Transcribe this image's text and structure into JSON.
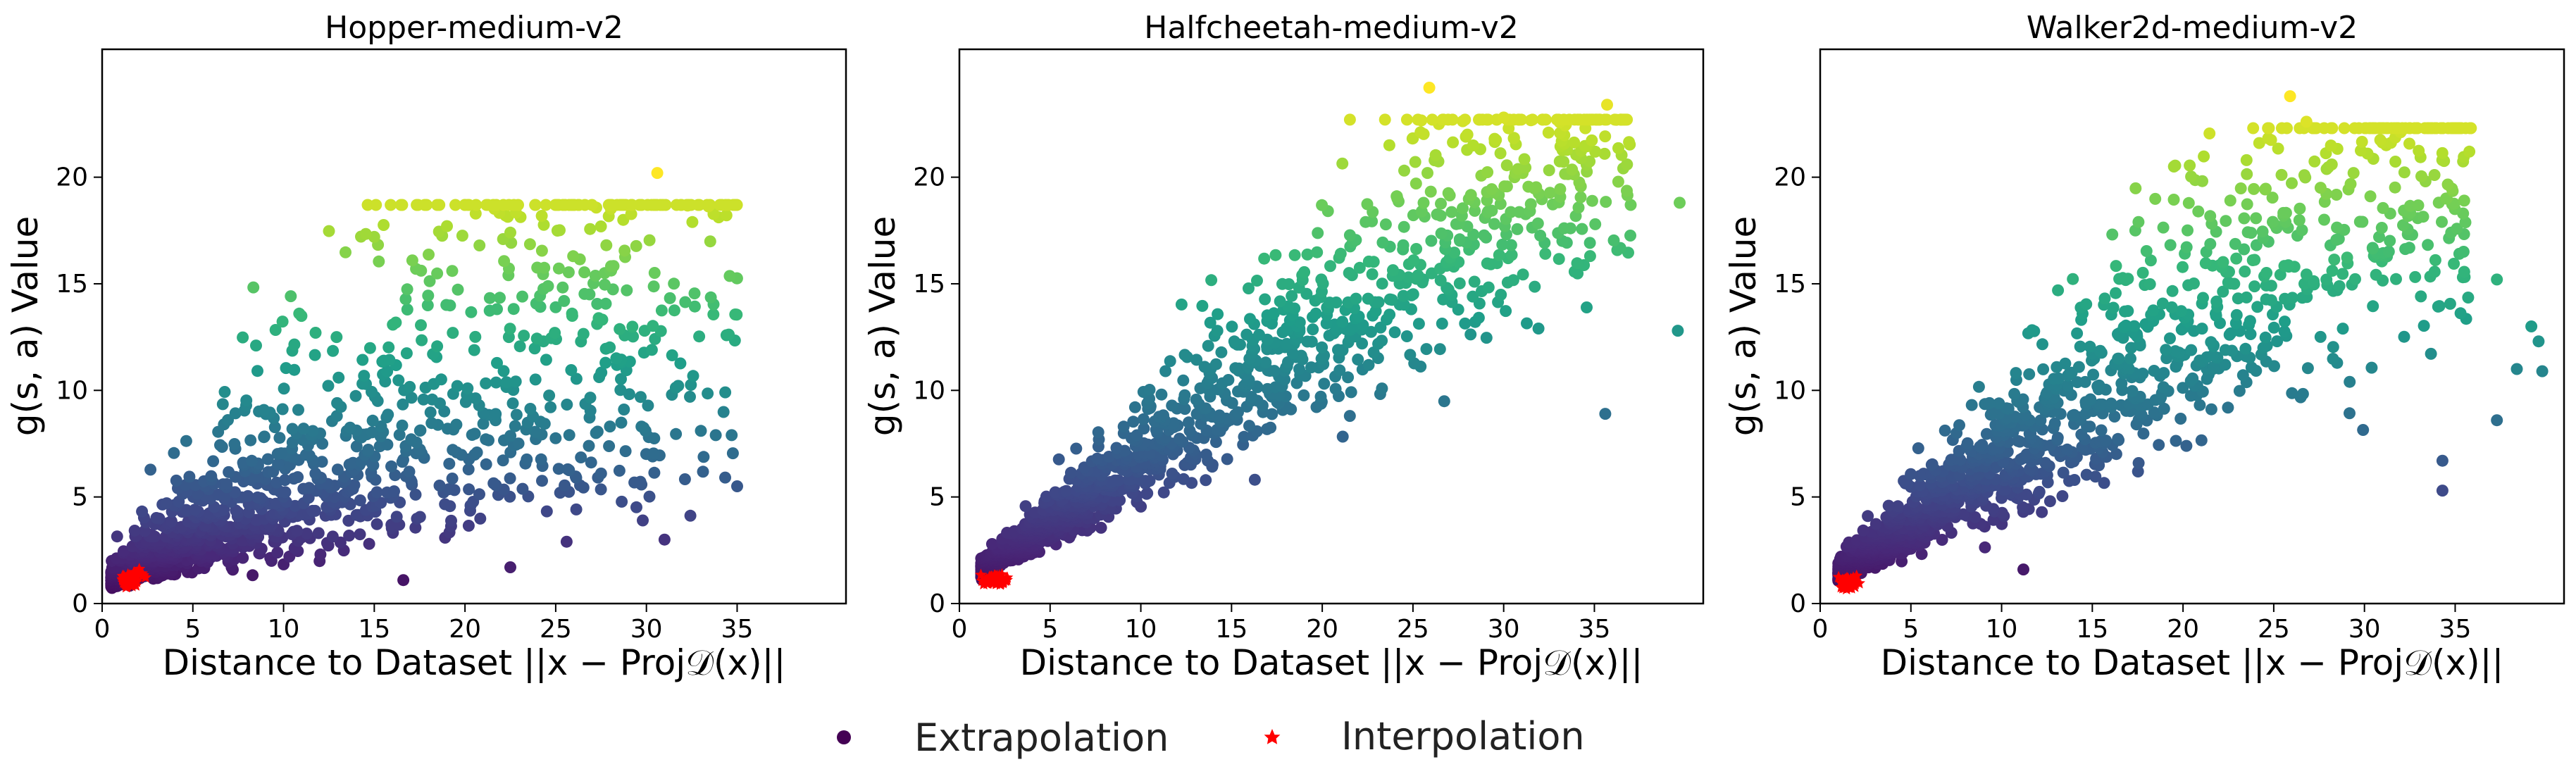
{
  "chart_data": [
    {
      "type": "scatter",
      "title": "Hopper-medium-v2",
      "xlabel": "Distance to Dataset ||x − Proj𝒟(x)||",
      "ylabel": "g(s, a) Value",
      "xlim": [
        0,
        41
      ],
      "ylim": [
        0,
        26
      ],
      "xticks": [
        "0",
        "5",
        "10",
        "15",
        "20",
        "25",
        "30",
        "35"
      ],
      "yticks": [
        "0",
        "5",
        "10",
        "15",
        "20"
      ],
      "color_range": [
        0,
        20.2
      ],
      "series": [
        {
          "name": "Extrapolation",
          "marker": "circle",
          "colormap": "viridis",
          "trend": {
            "x_range": [
              0.5,
              35
            ],
            "mean_slope": 0.42,
            "spread": 0.55
          },
          "values": [
            [
              30.6,
              20.2
            ],
            [
              15.0,
              17.2
            ],
            [
              22.5,
              17.4
            ],
            [
              17.1,
              16.1
            ],
            [
              17.3,
              15.7
            ],
            [
              20.8,
              16.8
            ],
            [
              27.7,
              15.5
            ],
            [
              25.0,
              13.9
            ],
            [
              25.9,
              13.6
            ],
            [
              29.9,
              12.8
            ],
            [
              32.4,
              9.7
            ],
            [
              33.0,
              8.1
            ],
            [
              34.7,
              7.9
            ],
            [
              35.0,
              5.5
            ],
            [
              27.5,
              6.1
            ],
            [
              29.8,
              3.9
            ],
            [
              31.0,
              3.0
            ],
            [
              25.6,
              2.9
            ],
            [
              22.5,
              1.7
            ],
            [
              16.6,
              1.1
            ],
            [
              30.3,
              11.9
            ]
          ]
        },
        {
          "name": "Interpolation",
          "marker": "star",
          "color": "#ff0000",
          "center": [
            1.6,
            1.1
          ],
          "spread": [
            0.45,
            0.3
          ]
        }
      ]
    },
    {
      "type": "scatter",
      "title": "Halfcheetah-medium-v2",
      "xlabel": "Distance to Dataset ||x − Proj𝒟(x)||",
      "ylabel": "g(s, a) Value",
      "xlim": [
        0,
        41
      ],
      "ylim": [
        0,
        26
      ],
      "xticks": [
        "0",
        "5",
        "10",
        "15",
        "20",
        "25",
        "30",
        "35"
      ],
      "yticks": [
        "0",
        "5",
        "10",
        "15",
        "20"
      ],
      "color_range": [
        0,
        24.2
      ],
      "series": [
        {
          "name": "Extrapolation",
          "marker": "circle",
          "colormap": "viridis",
          "trend": {
            "x_range": [
              1.2,
              37
            ],
            "mean_slope": 0.6,
            "spread": 0.2
          },
          "values": [
            [
              25.9,
              24.2
            ],
            [
              35.7,
              23.4
            ],
            [
              30.0,
              22.8
            ],
            [
              28.0,
              22.0
            ],
            [
              33.2,
              21.7
            ],
            [
              23.7,
              21.5
            ],
            [
              36.8,
              20.6
            ],
            [
              37.0,
              18.7
            ],
            [
              39.7,
              18.8
            ],
            [
              39.6,
              12.8
            ],
            [
              35.6,
              8.9
            ],
            [
              25.8,
              20.2
            ],
            [
              30.6,
              20.0
            ],
            [
              29.5,
              21.8
            ]
          ]
        },
        {
          "name": "Interpolation",
          "marker": "star",
          "color": "#ff0000",
          "center": [
            2.0,
            1.1
          ],
          "spread": [
            0.5,
            0.22
          ]
        }
      ]
    },
    {
      "type": "scatter",
      "title": "Walker2d-medium-v2",
      "xlabel": "Distance to Dataset ||x − Proj𝒟(x)||",
      "ylabel": "g(s, a) Value",
      "xlim": [
        0,
        41
      ],
      "ylim": [
        0,
        26
      ],
      "xticks": [
        "0",
        "5",
        "10",
        "15",
        "20",
        "25",
        "30",
        "35"
      ],
      "yticks": [
        "0",
        "5",
        "10",
        "15",
        "20"
      ],
      "color_range": [
        0,
        23.8
      ],
      "series": [
        {
          "name": "Extrapolation",
          "marker": "circle",
          "colormap": "viridis",
          "trend": {
            "x_range": [
              1.0,
              36
            ],
            "mean_slope": 0.58,
            "spread": 0.28
          },
          "values": [
            [
              25.9,
              23.8
            ],
            [
              26.8,
              22.6
            ],
            [
              31.2,
              21.5
            ],
            [
              28.2,
              20.6
            ],
            [
              29.4,
              20.2
            ],
            [
              34.5,
              19.0
            ],
            [
              35.5,
              18.9
            ],
            [
              37.3,
              15.2
            ],
            [
              39.2,
              13.0
            ],
            [
              39.6,
              12.3
            ],
            [
              39.8,
              10.9
            ],
            [
              38.4,
              11.0
            ],
            [
              37.3,
              8.6
            ],
            [
              34.3,
              6.7
            ],
            [
              34.3,
              5.3
            ],
            [
              11.2,
              1.6
            ],
            [
              19.5,
              20.5
            ],
            [
              23.5,
              20.8
            ]
          ]
        },
        {
          "name": "Interpolation",
          "marker": "star",
          "color": "#ff0000",
          "center": [
            1.6,
            1.0
          ],
          "spread": [
            0.45,
            0.22
          ]
        }
      ]
    }
  ],
  "legend": {
    "position": "bottom-center",
    "items": [
      {
        "label": "Extrapolation",
        "marker": "circle",
        "color": "#440154"
      },
      {
        "label": "Interpolation",
        "marker": "star",
        "color": "#ff0000"
      }
    ]
  }
}
